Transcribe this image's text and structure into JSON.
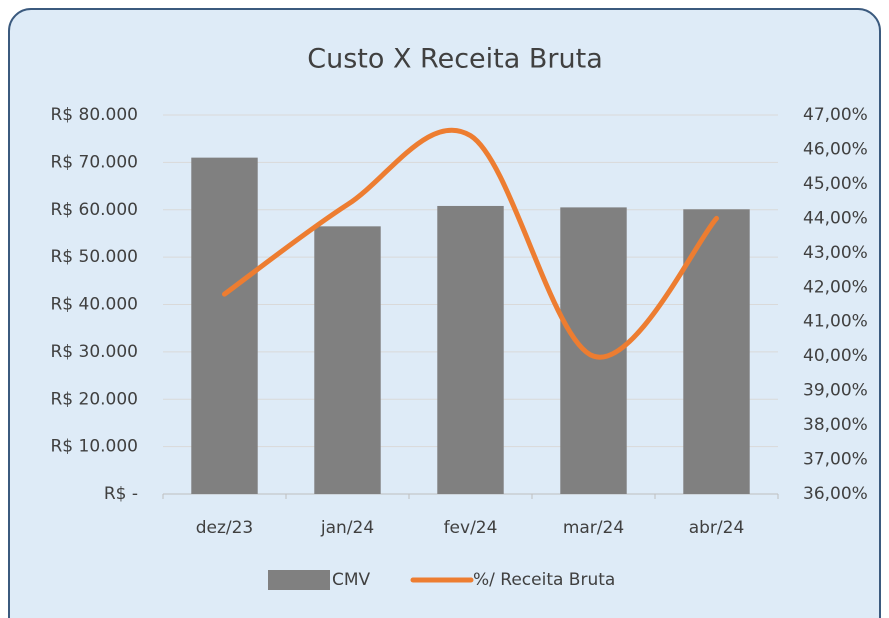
{
  "chart_data": {
    "type": "bar_line",
    "title": "Custo X Receita Bruta",
    "categories": [
      "dez/23",
      "jan/24",
      "fev/24",
      "mar/24",
      "abr/24"
    ],
    "series": [
      {
        "name": "CMV",
        "color": "#808080",
        "type": "bar",
        "values": [
          71000,
          56500,
          60800,
          60500,
          60100
        ]
      },
      {
        "name": "%/ Receita Bruta",
        "color": "#ed7d31",
        "type": "line",
        "axis": "y2",
        "values": [
          41.8,
          44.4,
          46.4,
          40.0,
          44.0
        ]
      }
    ],
    "ylim": [
      0,
      80000
    ],
    "yticks": [
      {
        "value": 0,
        "label": "R$ -"
      },
      {
        "value": 10000,
        "label": "R$ 10.000"
      },
      {
        "value": 20000,
        "label": "R$ 20.000"
      },
      {
        "value": 30000,
        "label": "R$ 30.000"
      },
      {
        "value": 40000,
        "label": "R$ 40.000"
      },
      {
        "value": 50000,
        "label": "R$ 50.000"
      },
      {
        "value": 60000,
        "label": "R$ 60.000"
      },
      {
        "value": 70000,
        "label": "R$ 70.000"
      },
      {
        "value": 80000,
        "label": "R$ 80.000"
      }
    ],
    "y2lim": [
      36,
      47
    ],
    "y2ticks": [
      {
        "value": 36,
        "label": "36,00%"
      },
      {
        "value": 37,
        "label": "37,00%"
      },
      {
        "value": 38,
        "label": "38,00%"
      },
      {
        "value": 39,
        "label": "39,00%"
      },
      {
        "value": 40,
        "label": "40,00%"
      },
      {
        "value": 41,
        "label": "41,00%"
      },
      {
        "value": 42,
        "label": "42,00%"
      },
      {
        "value": 43,
        "label": "43,00%"
      },
      {
        "value": 44,
        "label": "44,00%"
      },
      {
        "value": 45,
        "label": "45,00%"
      },
      {
        "value": 46,
        "label": "46,00%"
      },
      {
        "value": 47,
        "label": "47,00%"
      }
    ],
    "grid": true,
    "legend": "bottom"
  }
}
